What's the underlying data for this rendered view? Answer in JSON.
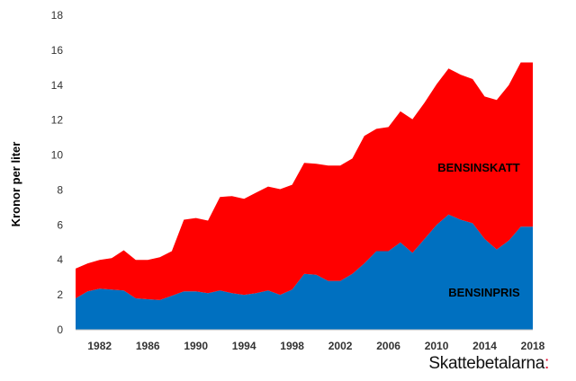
{
  "chart_data": {
    "type": "area",
    "stacked": true,
    "title": "",
    "xlabel": "",
    "ylabel": "Kronor per liter",
    "ylim": [
      0,
      18
    ],
    "yticks": [
      0,
      2,
      4,
      6,
      8,
      10,
      12,
      14,
      16,
      18
    ],
    "xlim": [
      1980,
      2018
    ],
    "xtick_labels": [
      "1982",
      "1986",
      "1990",
      "1994",
      "1998",
      "2002",
      "2006",
      "2010",
      "2014",
      "2018"
    ],
    "x": [
      1980,
      1981,
      1982,
      1983,
      1984,
      1985,
      1986,
      1987,
      1988,
      1989,
      1990,
      1991,
      1992,
      1993,
      1994,
      1995,
      1996,
      1997,
      1998,
      1999,
      2000,
      2001,
      2002,
      2003,
      2004,
      2005,
      2006,
      2007,
      2008,
      2009,
      2010,
      2011,
      2012,
      2013,
      2014,
      2015,
      2016,
      2017,
      2018
    ],
    "series": [
      {
        "name": "BENSINPRIS",
        "color": "#0070c0",
        "values": [
          1.8,
          2.2,
          2.35,
          2.3,
          2.25,
          1.8,
          1.75,
          1.7,
          1.95,
          2.2,
          2.2,
          2.1,
          2.25,
          2.1,
          2.0,
          2.1,
          2.25,
          2.0,
          2.3,
          3.2,
          3.15,
          2.8,
          2.8,
          3.2,
          3.8,
          4.5,
          4.5,
          5.0,
          4.4,
          5.2,
          6.0,
          6.6,
          6.3,
          6.1,
          5.2,
          4.6,
          5.1,
          5.9,
          5.9
        ]
      },
      {
        "name": "BENSINSKATT",
        "color": "#ff0000",
        "values": [
          1.7,
          1.6,
          1.65,
          1.8,
          2.3,
          2.2,
          2.25,
          2.45,
          2.55,
          4.1,
          4.2,
          4.15,
          5.35,
          5.55,
          5.5,
          5.75,
          5.95,
          6.05,
          6.0,
          6.35,
          6.35,
          6.6,
          6.6,
          6.6,
          7.3,
          7.0,
          7.1,
          7.5,
          7.65,
          7.8,
          8.05,
          8.35,
          8.3,
          8.25,
          8.15,
          8.55,
          8.9,
          9.4,
          9.4
        ]
      }
    ],
    "grid": false,
    "legend": "none"
  },
  "brand": {
    "name": "Skattebetalarna",
    "suffix": ":"
  }
}
